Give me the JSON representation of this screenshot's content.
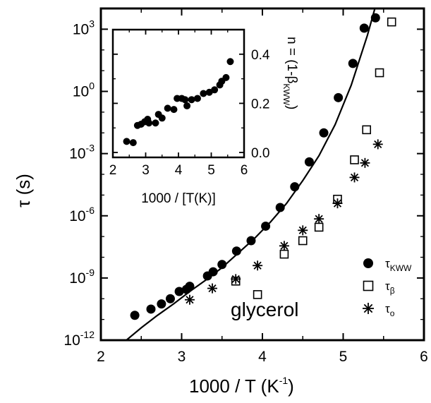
{
  "chart_data": [
    {
      "type": "scatter",
      "xlabel": "1000 / T (K",
      "xlabel_sup": "-1",
      "xlabel_close": ")",
      "ylabel": "τ (s)",
      "xlim": [
        2,
        6
      ],
      "ylim_log10": [
        -12,
        4
      ],
      "y_scale": "log",
      "x_ticks": [
        "2",
        "3",
        "4",
        "5",
        "6"
      ],
      "y_ticks": [
        {
          "base": "10",
          "exp": "3",
          "log": 3
        },
        {
          "base": "10",
          "exp": "0",
          "log": 0
        },
        {
          "base": "10",
          "exp": "-3",
          "log": -3
        },
        {
          "base": "10",
          "exp": "-6",
          "log": -6
        },
        {
          "base": "10",
          "exp": "-9",
          "log": -9
        },
        {
          "base": "10",
          "exp": "-12",
          "log": -12
        }
      ],
      "annotation": "glycerol",
      "legend_position": "bottom-right",
      "series": [
        {
          "name": "τKWW",
          "label_main": "τ",
          "label_sub": "KWW",
          "marker": "filled-circle",
          "x": [
            2.42,
            2.62,
            2.75,
            2.86,
            2.97,
            3.06,
            3.1,
            3.32,
            3.39,
            3.5,
            3.68,
            3.86,
            4.04,
            4.22,
            4.4,
            4.58,
            4.76,
            4.94,
            5.12,
            5.26,
            5.4
          ],
          "log10_y": [
            -10.8,
            -10.5,
            -10.25,
            -10.0,
            -9.65,
            -9.55,
            -9.4,
            -8.9,
            -8.7,
            -8.35,
            -7.7,
            -7.2,
            -6.5,
            -5.6,
            -4.6,
            -3.4,
            -2.0,
            -0.3,
            1.35,
            3.05,
            3.55
          ]
        },
        {
          "name": "τβ",
          "label_main": "τ",
          "label_sub": "β",
          "marker": "open-square",
          "x": [
            3.67,
            3.94,
            4.27,
            4.5,
            4.7,
            4.93,
            5.14,
            5.29,
            5.45,
            5.6
          ],
          "log10_y": [
            -9.15,
            -9.8,
            -7.85,
            -7.2,
            -6.55,
            -5.2,
            -3.3,
            -1.85,
            0.9,
            3.35
          ]
        },
        {
          "name": "τo",
          "label_main": "τ",
          "label_sub": "o",
          "marker": "asterisk",
          "x": [
            3.1,
            3.38,
            3.67,
            3.94,
            4.27,
            4.5,
            4.7,
            4.93,
            5.14,
            5.27,
            5.43
          ],
          "log10_y": [
            -10.05,
            -9.5,
            -9.05,
            -8.4,
            -7.45,
            -6.7,
            -6.15,
            -5.4,
            -4.15,
            -3.45,
            -2.55
          ]
        }
      ],
      "fit_curve": {
        "name": "VFT fit",
        "x": [
          2.3,
          2.5,
          2.7,
          2.9,
          3.1,
          3.3,
          3.5,
          3.7,
          3.9,
          4.1,
          4.3,
          4.5,
          4.7,
          4.9,
          5.1,
          5.3,
          5.45,
          5.6
        ],
        "log10_y": [
          -12.05,
          -11.4,
          -10.8,
          -10.25,
          -9.65,
          -9.1,
          -8.5,
          -7.8,
          -7.1,
          -6.3,
          -5.4,
          -4.3,
          -3.1,
          -1.6,
          0.3,
          2.7,
          4.8,
          7.3
        ]
      }
    },
    {
      "type": "scatter",
      "xlabel": "1000 / [T(K)]",
      "ylabel": "n = (1-β",
      "ylabel_sub": "KWW",
      "ylabel_close": ")",
      "xlim": [
        2,
        6
      ],
      "ylim": [
        -0.02,
        0.5
      ],
      "x_ticks": [
        "2",
        "3",
        "4",
        "5",
        "6"
      ],
      "y_ticks": [
        "0.0",
        "0.2",
        "0.4"
      ],
      "y_tick_values": [
        0.0,
        0.2,
        0.4
      ],
      "series": [
        {
          "marker": "filled-circle",
          "x": [
            2.42,
            2.62,
            2.75,
            2.86,
            2.97,
            3.06,
            3.1,
            3.3,
            3.39,
            3.5,
            3.67,
            3.86,
            3.96,
            4.1,
            4.2,
            4.26,
            4.4,
            4.58,
            4.76,
            4.94,
            5.1,
            5.26,
            5.32,
            5.45,
            5.58
          ],
          "y": [
            0.045,
            0.04,
            0.11,
            0.115,
            0.125,
            0.135,
            0.12,
            0.12,
            0.155,
            0.14,
            0.18,
            0.175,
            0.22,
            0.22,
            0.215,
            0.19,
            0.215,
            0.22,
            0.24,
            0.245,
            0.255,
            0.275,
            0.29,
            0.305,
            0.37
          ]
        }
      ]
    }
  ]
}
